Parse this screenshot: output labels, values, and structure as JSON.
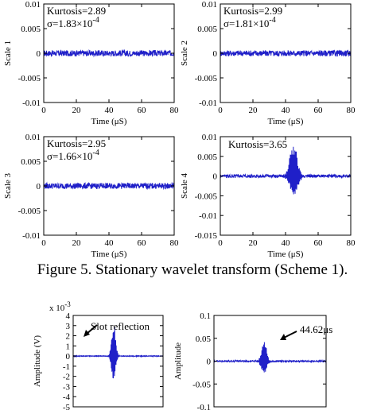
{
  "caption": "Figure 5. Stationary wavelet transform (Scheme 1).",
  "series_color": "#1f1fc8",
  "chart_data": [
    {
      "type": "line",
      "ylabel": "Scale 1",
      "xlabel": "Time (μS)",
      "xlim": [
        0,
        80
      ],
      "ylim": [
        -0.01,
        0.01
      ],
      "xticks": [
        "0",
        "20",
        "40",
        "60",
        "80"
      ],
      "yticks": [
        "0.01",
        "0.005",
        "0",
        "-0.005",
        "-0.01"
      ],
      "annotation_lines": [
        "Kurtosis=2.89",
        "σ=1.83×10",
        "-4"
      ],
      "series": [
        {
          "signal": "noise",
          "amplitude": 0.0006
        }
      ]
    },
    {
      "type": "line",
      "ylabel": "Scale 2",
      "xlabel": "Time (μS)",
      "xlim": [
        0,
        80
      ],
      "ylim": [
        -0.01,
        0.01
      ],
      "xticks": [
        "0",
        "20",
        "40",
        "60",
        "80"
      ],
      "yticks": [
        "0.01",
        "0.005",
        "0",
        "-0.005",
        "-0.01"
      ],
      "annotation_lines": [
        "Kurtosis=2.99",
        "σ=1.81×10",
        "-4"
      ],
      "series": [
        {
          "signal": "noise",
          "amplitude": 0.0006
        }
      ]
    },
    {
      "type": "line",
      "ylabel": "Scale 3",
      "xlabel": "Time (μS)",
      "xlim": [
        0,
        80
      ],
      "ylim": [
        -0.01,
        0.01
      ],
      "xticks": [
        "0",
        "20",
        "40",
        "60",
        "80"
      ],
      "yticks": [
        "0.01",
        "0.005",
        "0",
        "-0.005",
        "-0.01"
      ],
      "annotation_lines": [
        "Kurtosis=2.95",
        "σ=1.66×10",
        "-4"
      ],
      "series": [
        {
          "signal": "noise",
          "amplitude": 0.0006
        }
      ]
    },
    {
      "type": "line",
      "ylabel": "Scale 4",
      "xlabel": "Time (μS)",
      "xlim": [
        0,
        80
      ],
      "ylim": [
        -0.015,
        0.01
      ],
      "xticks": [
        "0",
        "20",
        "40",
        "60",
        "80"
      ],
      "yticks": [
        "0.01",
        "0.005",
        "0",
        "-0.005",
        "-0.01",
        "-0.015"
      ],
      "annotation_lines": [
        "Kurtosis=3.65"
      ],
      "series": [
        {
          "signal": "burst",
          "center": 45,
          "width": 3,
          "amplitude": 0.01,
          "noise": 0.0004
        }
      ]
    },
    {
      "type": "line",
      "ylabel": "Amplitude (V)",
      "exponent_label": "x 10",
      "exponent_power": "-3",
      "xlim": [
        0,
        100
      ],
      "ylim": [
        -5,
        4
      ],
      "yticks": [
        "4",
        "3",
        "2",
        "1",
        "0",
        "-1",
        "-2",
        "-3",
        "-4",
        "-5"
      ],
      "annotation_lines": [
        "Slot reflection"
      ],
      "series": [
        {
          "signal": "burst",
          "center": 45,
          "width": 3,
          "amplitude": 3.5,
          "noise": 0.03
        }
      ]
    },
    {
      "type": "line",
      "ylabel": "Amplitude",
      "xlim": [
        0,
        100
      ],
      "ylim": [
        -0.1,
        0.1
      ],
      "yticks": [
        "0.1",
        "0.05",
        "0",
        "-0.05",
        "-0.1"
      ],
      "annotation_lines": [
        "44.62μs"
      ],
      "series": [
        {
          "signal": "burst",
          "center": 44.6,
          "width": 3,
          "amplitude": 0.05,
          "noise": 0.0015
        }
      ]
    }
  ]
}
